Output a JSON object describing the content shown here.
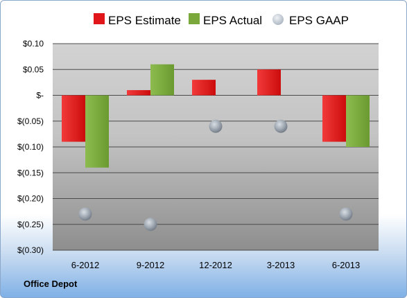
{
  "chart_data": {
    "type": "bar",
    "categories": [
      "6-2012",
      "9-2012",
      "12-2012",
      "3-2013",
      "6-2013"
    ],
    "series": [
      {
        "name": "EPS Estimate",
        "kind": "bar",
        "color": "#e0161b",
        "values": [
          -0.09,
          0.01,
          0.03,
          0.05,
          -0.09
        ]
      },
      {
        "name": "EPS Actual",
        "kind": "bar",
        "color": "#7aa83a",
        "values": [
          -0.14,
          0.06,
          null,
          null,
          -0.1
        ]
      },
      {
        "name": "EPS GAAP",
        "kind": "marker",
        "color": "#a9b4c0",
        "values": [
          -0.23,
          -0.25,
          -0.06,
          -0.06,
          -0.23
        ]
      }
    ],
    "ylim": [
      -0.3,
      0.1
    ],
    "yticks": [
      {
        "value": 0.1,
        "label": "$0.10"
      },
      {
        "value": 0.05,
        "label": "$0.05"
      },
      {
        "value": 0.0,
        "label": "$-"
      },
      {
        "value": -0.05,
        "label": "$(0.05)"
      },
      {
        "value": -0.1,
        "label": "$(0.10)"
      },
      {
        "value": -0.15,
        "label": "$(0.15)"
      },
      {
        "value": -0.2,
        "label": "$(0.20)"
      },
      {
        "value": -0.25,
        "label": "$(0.25)"
      },
      {
        "value": -0.3,
        "label": "$(0.30)"
      }
    ],
    "grid": true,
    "legend": "top"
  },
  "footer": {
    "company": "Office Depot"
  }
}
